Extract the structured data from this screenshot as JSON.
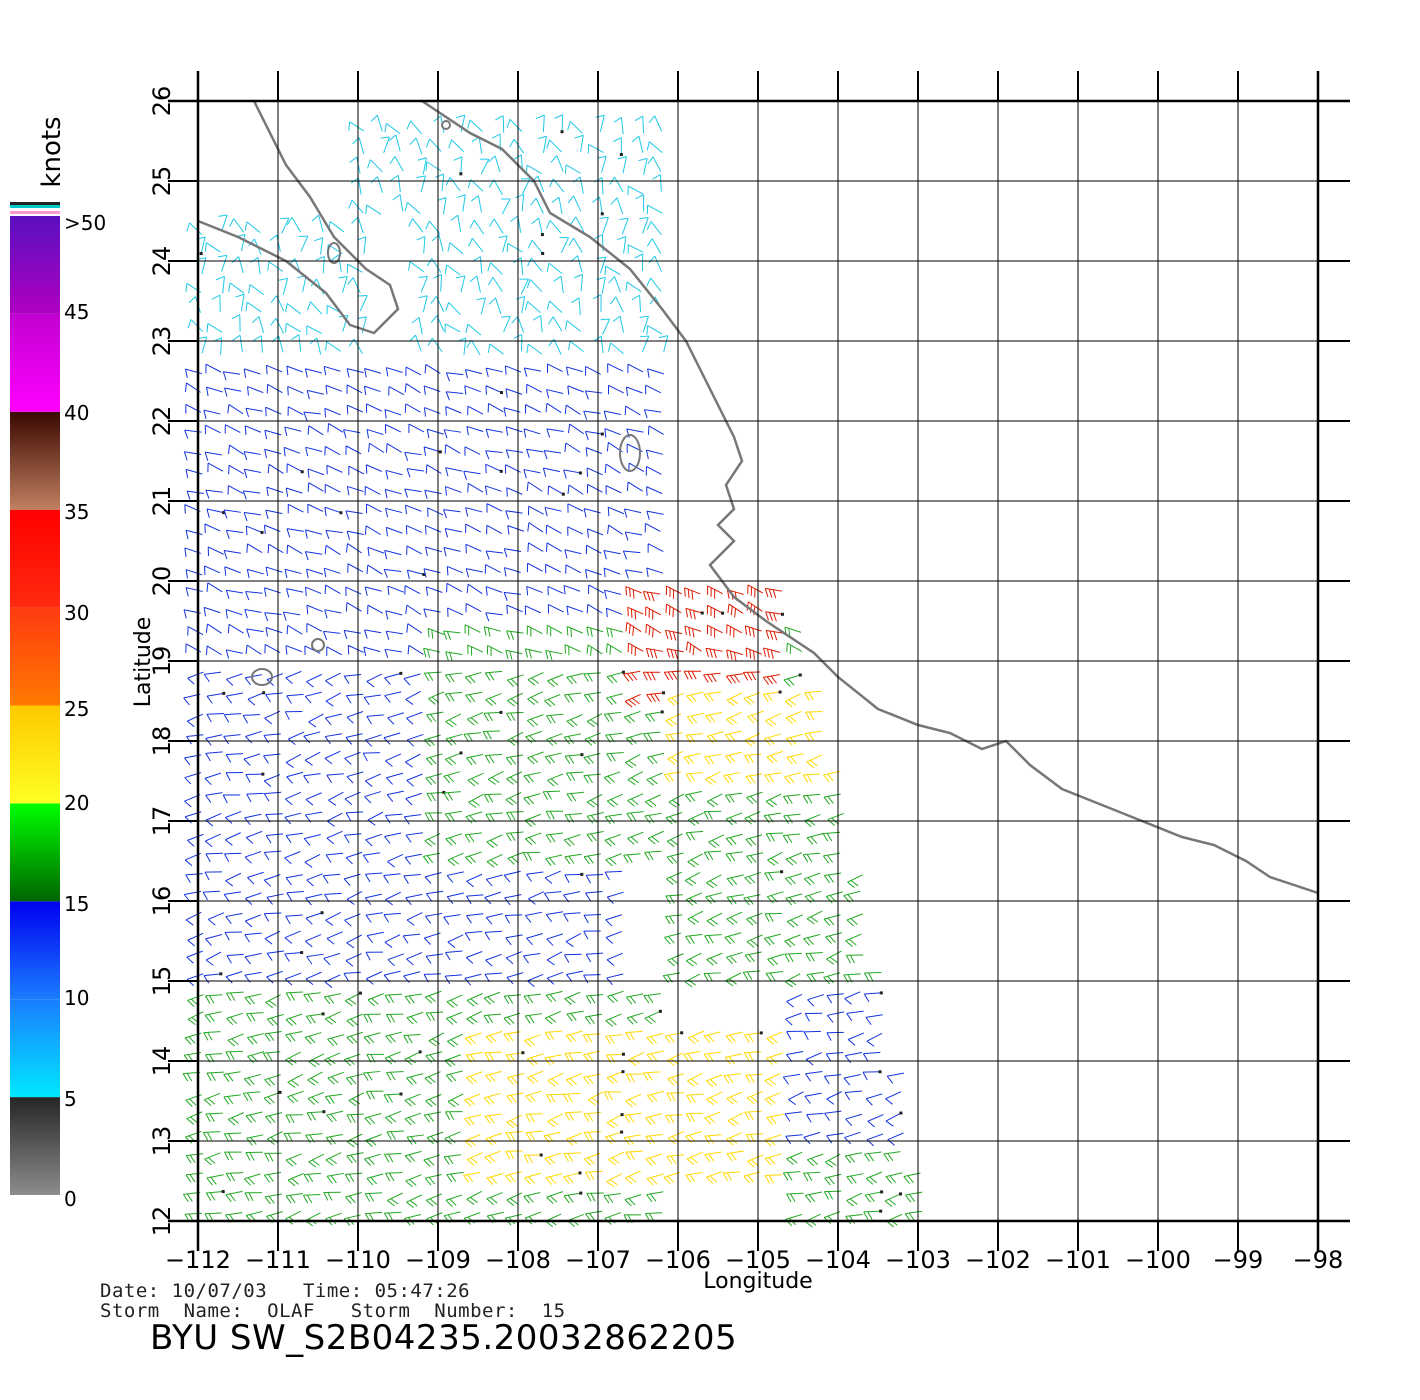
{
  "map": {
    "lon_range": [
      -112,
      -98
    ],
    "lat_range": [
      12,
      26
    ],
    "x_title": "Longitude",
    "y_title": "Latitude",
    "lon_ticks": [
      "−112",
      "−111",
      "−110",
      "−109",
      "−108",
      "−107",
      "−106",
      "−105",
      "−104",
      "−103",
      "−102",
      "−101",
      "−100",
      "−99",
      "−98"
    ],
    "lat_ticks": [
      "12",
      "13",
      "14",
      "15",
      "16",
      "17",
      "18",
      "19",
      "20",
      "21",
      "22",
      "23",
      "24",
      "25",
      "26"
    ],
    "gridlines": true,
    "coast_color": "#777777"
  },
  "colorbar": {
    "units": "knots",
    "labels": [
      "0",
      "5",
      "10",
      "15",
      "20",
      "25",
      "30",
      "35",
      "40",
      "45",
      ">50"
    ],
    "bands": [
      {
        "from": 0,
        "to": 5,
        "colors": [
          "#8c8c8c",
          "#262626"
        ]
      },
      {
        "from": 5,
        "to": 10,
        "colors": [
          "#00e8ff",
          "#1a7dff"
        ]
      },
      {
        "from": 10,
        "to": 15,
        "colors": [
          "#1a7dff",
          "#0000f0"
        ]
      },
      {
        "from": 15,
        "to": 20,
        "colors": [
          "#006400",
          "#00ff00"
        ]
      },
      {
        "from": 20,
        "to": 25,
        "colors": [
          "#ffff20",
          "#ffc800"
        ]
      },
      {
        "from": 25,
        "to": 30,
        "colors": [
          "#ff7a00",
          "#ff3a10"
        ]
      },
      {
        "from": 30,
        "to": 35,
        "colors": [
          "#ff2a10",
          "#ff0000"
        ]
      },
      {
        "from": 35,
        "to": 40,
        "colors": [
          "#c08060",
          "#3a0800"
        ]
      },
      {
        "from": 40,
        "to": 45,
        "colors": [
          "#ff00ff",
          "#c000d0"
        ]
      },
      {
        "from": 45,
        "to": 50,
        "colors": [
          "#b000c0",
          "#5a10c0"
        ]
      }
    ]
  },
  "info": {
    "date_line": "Date: 10/07/03   Time: 05:47:26",
    "storm_line": "Storm  Name:  OLAF   Storm  Number:  15",
    "product_id": "BYU  SW_S2B04235.20032862205"
  },
  "wind_field": {
    "speed_colors": {
      "cyan": "#1ec8e8",
      "blue": "#1432e0",
      "green": "#22a822",
      "yellow": "#ffd800",
      "orange": "#ff8800",
      "red": "#e01a00",
      "black": "#222222"
    },
    "regions": [
      {
        "lon": [
          -112,
          -109.5
        ],
        "lat": [
          22,
          24.5
        ],
        "color": "cyan"
      },
      {
        "lon": [
          -110.2,
          -106
        ],
        "lat": [
          22.8,
          25.8
        ],
        "color": "cyan"
      },
      {
        "lon": [
          -112,
          -106
        ],
        "lat": [
          20,
          22.8
        ],
        "color": "blue"
      },
      {
        "lon": [
          -112,
          -106.5
        ],
        "lat": [
          15,
          20
        ],
        "color": "blue"
      },
      {
        "lon": [
          -109,
          -104
        ],
        "lat": [
          16.5,
          19.5
        ],
        "color": "green"
      },
      {
        "lon": [
          -106.5,
          -104.5
        ],
        "lat": [
          18.5,
          20
        ],
        "color": "red"
      },
      {
        "lon": [
          -106,
          -103.8
        ],
        "lat": [
          17.5,
          18.7
        ],
        "color": "yellow"
      },
      {
        "lon": [
          -106,
          -102.8
        ],
        "lat": [
          15,
          17.5
        ],
        "color": "green"
      },
      {
        "lon": [
          -112,
          -106
        ],
        "lat": [
          12,
          15
        ],
        "color": "green"
      },
      {
        "lon": [
          -108.5,
          -104.5
        ],
        "lat": [
          12.5,
          14.5
        ],
        "color": "yellow"
      },
      {
        "lon": [
          -104.5,
          -102.8
        ],
        "lat": [
          13,
          15
        ],
        "color": "blue"
      },
      {
        "lon": [
          -104.5,
          -102.5
        ],
        "lat": [
          12,
          13
        ],
        "color": "green"
      }
    ]
  }
}
